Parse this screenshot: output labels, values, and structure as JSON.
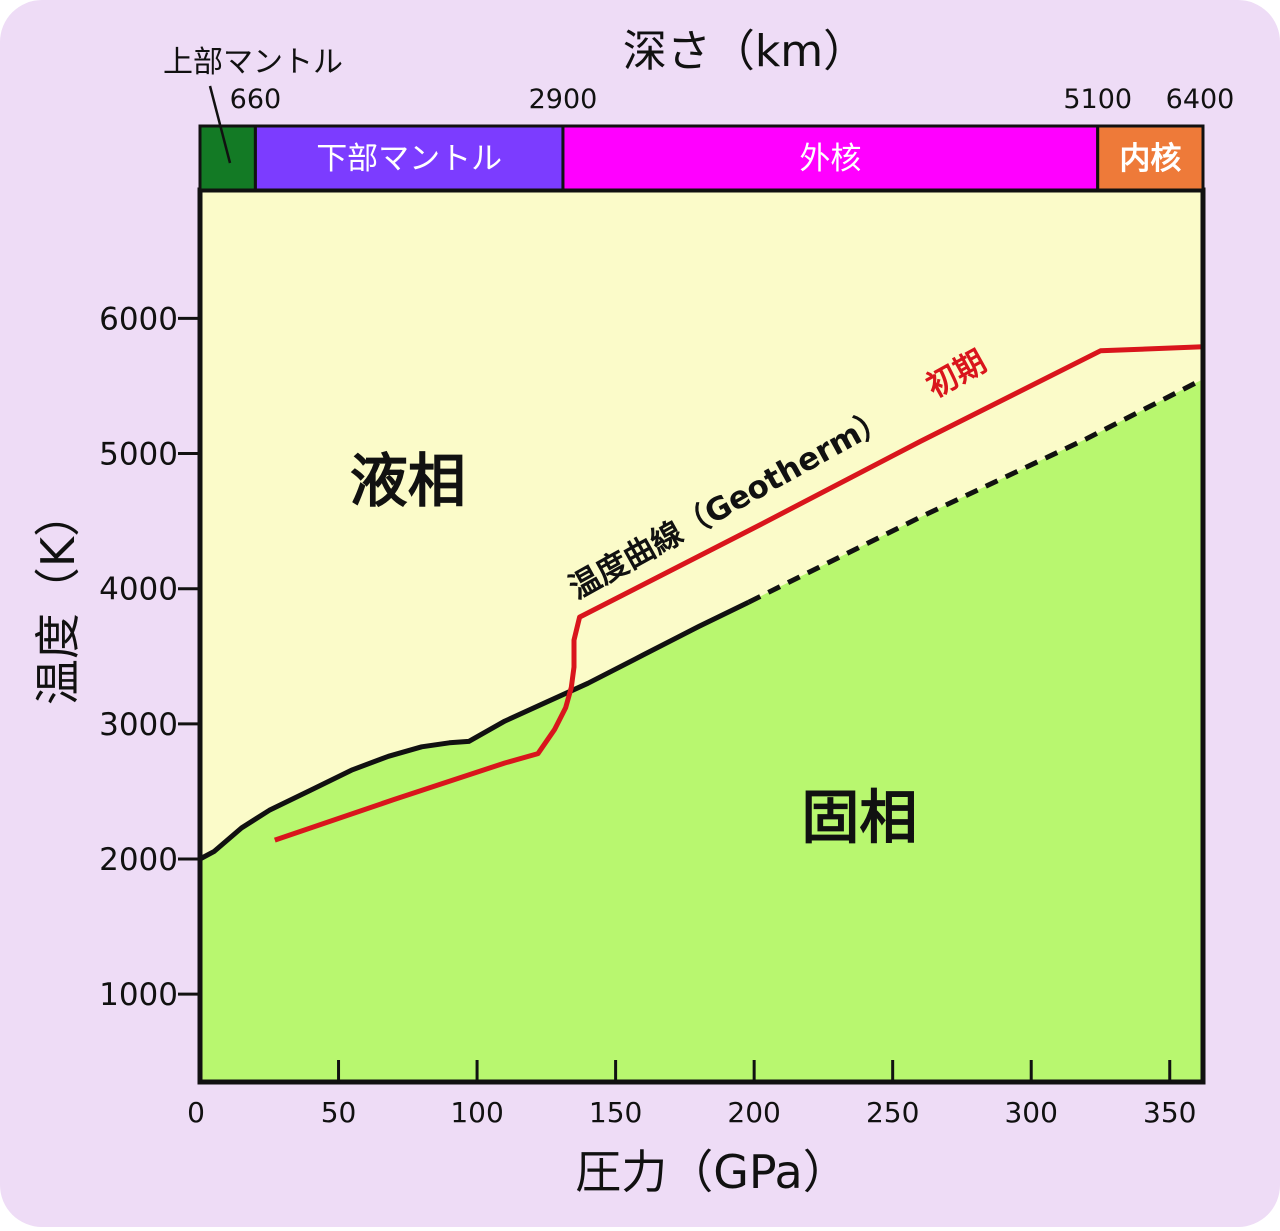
{
  "colors": {
    "card_background": "#eedcf6",
    "liquid_region": "#fbfbc9",
    "solid_region": "#b8f76f",
    "melting_curve": "#111111",
    "geotherm_curve": "#d9151c",
    "upper_mantle": "#137a25",
    "lower_mantle": "#7c3cff",
    "outer_core": "#ff00ff",
    "inner_core": "#ee7a39"
  },
  "chart_data": {
    "type": "line",
    "xlabel": "圧力（GPa）",
    "ylabel": "温度（K）",
    "x_top_label": "深さ（km）",
    "xlim": [
      0,
      362
    ],
    "ylim": [
      350,
      6950
    ],
    "x_ticks": [
      0,
      50,
      100,
      150,
      200,
      250,
      300,
      350
    ],
    "y_ticks": [
      1000,
      2000,
      3000,
      4000,
      5000,
      6000
    ],
    "depth_ticks": [
      {
        "label": "660",
        "pressure": 20
      },
      {
        "label": "2900",
        "pressure": 131
      },
      {
        "label": "5100",
        "pressure": 324
      },
      {
        "label": "6400",
        "pressure": 362
      }
    ],
    "layers": [
      {
        "name": "上部マントル",
        "from": 0,
        "to": 20,
        "label_outside": true
      },
      {
        "name": "下部マントル",
        "from": 20,
        "to": 131
      },
      {
        "name": "外核",
        "from": 131,
        "to": 324
      },
      {
        "name": "内核",
        "from": 324,
        "to": 362
      }
    ],
    "region_labels": {
      "liquid": {
        "text": "液相",
        "x": 75,
        "y": 4650
      },
      "solid": {
        "text": "固相",
        "x": 238,
        "y": 2160
      }
    },
    "series": [
      {
        "role": "melting-curve",
        "x": [
          0,
          5,
          15,
          25,
          40,
          55,
          68,
          80,
          90,
          97,
          110,
          125,
          140,
          160,
          180,
          198
        ],
        "y": [
          2000,
          2055,
          2230,
          2360,
          2510,
          2660,
          2760,
          2830,
          2860,
          2870,
          3020,
          3160,
          3300,
          3510,
          3720,
          3900
        ],
        "dash": "solid"
      },
      {
        "role": "melting-curve-extrapolated",
        "x": [
          198,
          260,
          320,
          362
        ],
        "y": [
          3900,
          4530,
          5110,
          5550
        ],
        "dash": "dashed"
      },
      {
        "role": "geotherm",
        "x": [
          27,
          70,
          110,
          122,
          128,
          132,
          134,
          135,
          135,
          137,
          200,
          260,
          325,
          362
        ],
        "y": [
          2140,
          2440,
          2710,
          2780,
          2960,
          3120,
          3270,
          3420,
          3620,
          3790,
          4450,
          5090,
          5760,
          5790
        ],
        "dash": "solid"
      }
    ],
    "annotations": [
      {
        "text": "温度曲線（Geotherm）",
        "x": 136,
        "y": 3920,
        "angle_deg": -29,
        "color": "#111111"
      },
      {
        "text": "初期",
        "x": 265,
        "y": 5410,
        "angle_deg": -29,
        "color": "#d9151c"
      }
    ]
  }
}
